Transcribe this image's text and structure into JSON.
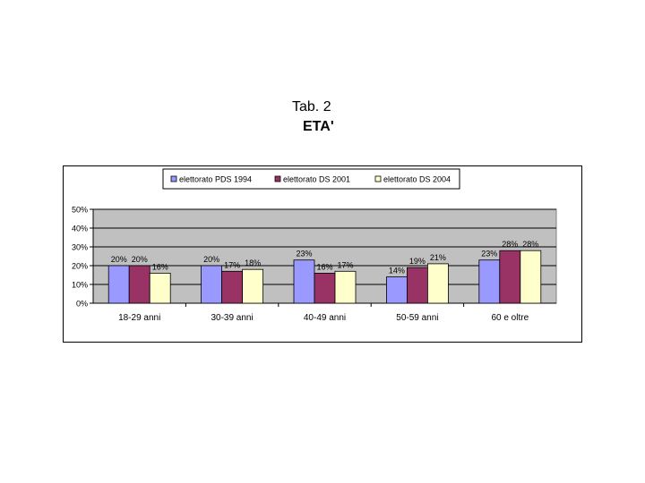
{
  "header": {
    "title": "Tab. 2",
    "subtitle": "ETA'"
  },
  "chart_data": {
    "type": "bar",
    "categories": [
      "18-29 anni",
      "30-39 anni",
      "40-49 anni",
      "50-59 anni",
      "60 e oltre"
    ],
    "series": [
      {
        "name": "elettorato PDS 1994",
        "color": "#9999ff",
        "values": [
          20,
          20,
          23,
          14,
          23
        ],
        "labels": [
          "20%",
          "20%",
          "23%",
          "14%",
          "23%"
        ]
      },
      {
        "name": "elettorato DS 2001",
        "color": "#993366",
        "values": [
          20,
          17,
          16,
          19,
          28
        ],
        "labels": [
          "20%",
          "17%",
          "16%",
          "19%",
          "28%"
        ]
      },
      {
        "name": "elettorato DS 2004",
        "color": "#ffffcc",
        "values": [
          16,
          18,
          17,
          21,
          28
        ],
        "labels": [
          "16%",
          "18%",
          "17%",
          "21%",
          "28%"
        ]
      }
    ],
    "ylim": [
      0,
      50
    ],
    "yticks": [
      0,
      10,
      20,
      30,
      40,
      50
    ],
    "ytick_labels": [
      "0%",
      "10%",
      "20%",
      "30%",
      "40%",
      "50%"
    ],
    "grid": true,
    "plot_background": "#c0c0c0",
    "legend_position": "top"
  }
}
